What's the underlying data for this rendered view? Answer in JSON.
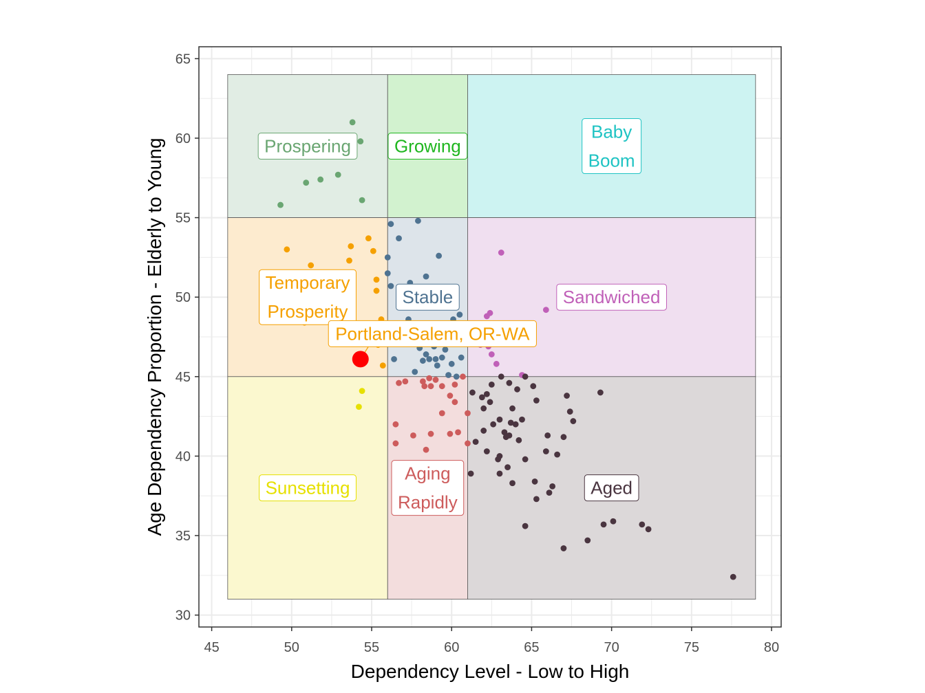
{
  "chart_data": {
    "type": "scatter",
    "title": "",
    "xlabel": "Dependency Level - Low to High",
    "ylabel": "Age Dependency Proportion - Elderly to Young",
    "xlim": [
      44.2,
      80.6
    ],
    "ylim": [
      29.25,
      65.75
    ],
    "x_ticks": [
      45,
      50,
      55,
      60,
      65,
      70,
      75,
      80
    ],
    "y_ticks": [
      30,
      35,
      40,
      45,
      50,
      55,
      60,
      65
    ],
    "grid": true,
    "legend": "none",
    "regions": [
      {
        "name": "Prospering",
        "label_lines": [
          "Prospering"
        ],
        "x": [
          46,
          56
        ],
        "y": [
          55,
          64
        ],
        "color": "#6aa672",
        "fill": "#e1ede4",
        "label_at": [
          51,
          59.5
        ]
      },
      {
        "name": "Growing",
        "label_lines": [
          "Growing"
        ],
        "x": [
          56,
          61
        ],
        "y": [
          55,
          64
        ],
        "color": "#1fb61f",
        "fill": "#d2f2cf",
        "label_at": [
          58.5,
          59.5
        ]
      },
      {
        "name": "Baby Boom",
        "label_lines": [
          "Baby",
          "Boom"
        ],
        "x": [
          61,
          79
        ],
        "y": [
          55,
          64
        ],
        "color": "#1fc3c3",
        "fill": "#cdf3f2",
        "label_at": [
          70,
          59.5
        ]
      },
      {
        "name": "Temporary Prosperity",
        "label_lines": [
          "Temporary",
          "Prosperity"
        ],
        "x": [
          46,
          56
        ],
        "y": [
          45,
          55
        ],
        "color": "#f5a000",
        "fill": "#fdebcf",
        "label_at": [
          51,
          50
        ]
      },
      {
        "name": "Stable",
        "label_lines": [
          "Stable"
        ],
        "x": [
          56,
          61
        ],
        "y": [
          45,
          55
        ],
        "color": "#4f7391",
        "fill": "#dde4ea",
        "label_at": [
          58.5,
          50
        ]
      },
      {
        "name": "Sandwiched",
        "label_lines": [
          "Sandwiched"
        ],
        "x": [
          61,
          79
        ],
        "y": [
          45,
          55
        ],
        "color": "#c060b8",
        "fill": "#f0dff0",
        "label_at": [
          70,
          50
        ]
      },
      {
        "name": "Sunsetting",
        "label_lines": [
          "Sunsetting"
        ],
        "x": [
          46,
          56
        ],
        "y": [
          31,
          45
        ],
        "color": "#e6e000",
        "fill": "#fbf8cf",
        "label_at": [
          51,
          38
        ]
      },
      {
        "name": "Aging Rapidly",
        "label_lines": [
          "Aging",
          "Rapidly"
        ],
        "x": [
          56,
          61
        ],
        "y": [
          31,
          45
        ],
        "color": "#cd5c5c",
        "fill": "#f3dddd",
        "label_at": [
          58.5,
          38
        ]
      },
      {
        "name": "Aged",
        "label_lines": [
          "Aged"
        ],
        "x": [
          61,
          79
        ],
        "y": [
          31,
          45
        ],
        "color": "#4a3540",
        "fill": "#dcd8d9",
        "label_at": [
          70,
          38
        ]
      }
    ],
    "series": [
      {
        "category": "Prospering",
        "points": [
          [
            49.3,
            55.8
          ],
          [
            50.9,
            57.2
          ],
          [
            51.8,
            57.4
          ],
          [
            52.9,
            57.7
          ],
          [
            53.8,
            61.0
          ],
          [
            54.3,
            59.8
          ],
          [
            54.4,
            56.1
          ]
        ]
      },
      {
        "category": "Temporary Prosperity",
        "points": [
          [
            49.7,
            53.0
          ],
          [
            51.2,
            52.0
          ],
          [
            53.6,
            52.3
          ],
          [
            53.7,
            53.2
          ],
          [
            54.8,
            53.7
          ],
          [
            55.1,
            52.9
          ],
          [
            55.3,
            51.1
          ],
          [
            55.3,
            50.4
          ],
          [
            55.6,
            48.6
          ],
          [
            55.4,
            47.0
          ],
          [
            55.7,
            45.7
          ],
          [
            50.8,
            48.4
          ],
          [
            52.8,
            47.5
          ]
        ]
      },
      {
        "category": "Stable",
        "points": [
          [
            56.2,
            54.6
          ],
          [
            56.7,
            53.7
          ],
          [
            57.9,
            54.8
          ],
          [
            56.0,
            52.5
          ],
          [
            56.0,
            51.5
          ],
          [
            56.2,
            50.7
          ],
          [
            57.4,
            50.9
          ],
          [
            58.4,
            51.3
          ],
          [
            59.2,
            52.6
          ],
          [
            56.8,
            50.1
          ],
          [
            57.3,
            48.6
          ],
          [
            58.0,
            48.3
          ],
          [
            58.5,
            47.9
          ],
          [
            59.3,
            48.1
          ],
          [
            60.1,
            48.6
          ],
          [
            60.5,
            48.9
          ],
          [
            58.0,
            46.8
          ],
          [
            58.4,
            46.4
          ],
          [
            58.9,
            46.9
          ],
          [
            59.6,
            46.7
          ],
          [
            56.4,
            46.1
          ],
          [
            58.2,
            46.0
          ],
          [
            58.6,
            46.1
          ],
          [
            59.0,
            46.1
          ],
          [
            59.4,
            46.2
          ],
          [
            59.1,
            45.7
          ],
          [
            60.0,
            45.8
          ],
          [
            60.6,
            46.2
          ],
          [
            57.7,
            45.3
          ],
          [
            59.8,
            45.1
          ],
          [
            60.3,
            45.0
          ]
        ]
      },
      {
        "category": "Sandwiched",
        "points": [
          [
            63.1,
            52.8
          ],
          [
            65.9,
            49.2
          ],
          [
            62.2,
            48.8
          ],
          [
            62.4,
            49.0
          ],
          [
            63.2,
            48.3
          ],
          [
            64.7,
            48.1
          ],
          [
            61.6,
            47.4
          ],
          [
            61.8,
            47.0
          ],
          [
            62.3,
            46.9
          ],
          [
            62.5,
            46.4
          ],
          [
            62.8,
            45.8
          ],
          [
            64.4,
            45.1
          ]
        ]
      },
      {
        "category": "Sunsetting",
        "points": [
          [
            54.4,
            44.1
          ],
          [
            54.2,
            43.1
          ]
        ]
      },
      {
        "category": "Aging Rapidly",
        "points": [
          [
            56.7,
            44.6
          ],
          [
            57.1,
            44.7
          ],
          [
            58.2,
            44.7
          ],
          [
            58.6,
            44.9
          ],
          [
            59.0,
            44.8
          ],
          [
            59.4,
            44.4
          ],
          [
            60.2,
            44.5
          ],
          [
            60.7,
            45.0
          ],
          [
            58.3,
            44.4
          ],
          [
            58.7,
            44.4
          ],
          [
            56.5,
            42.0
          ],
          [
            59.4,
            42.7
          ],
          [
            61.0,
            42.7
          ],
          [
            57.6,
            41.3
          ],
          [
            56.5,
            40.8
          ],
          [
            58.7,
            41.4
          ],
          [
            59.9,
            41.4
          ],
          [
            60.4,
            41.5
          ],
          [
            61.0,
            40.8
          ],
          [
            58.4,
            40.4
          ],
          [
            59.9,
            43.8
          ],
          [
            60.2,
            43.4
          ]
        ]
      },
      {
        "category": "Aged",
        "points": [
          [
            61.3,
            44.0
          ],
          [
            61.9,
            43.7
          ],
          [
            62.2,
            43.9
          ],
          [
            62.5,
            44.5
          ],
          [
            63.1,
            45.0
          ],
          [
            62.0,
            43.0
          ],
          [
            62.4,
            43.4
          ],
          [
            63.6,
            44.6
          ],
          [
            64.1,
            44.2
          ],
          [
            64.6,
            45.0
          ],
          [
            65.1,
            44.4
          ],
          [
            65.3,
            43.5
          ],
          [
            62.6,
            42.0
          ],
          [
            63.0,
            42.3
          ],
          [
            63.7,
            42.1
          ],
          [
            64.4,
            42.3
          ],
          [
            63.8,
            43.0
          ],
          [
            64.0,
            42.0
          ],
          [
            63.3,
            41.5
          ],
          [
            63.4,
            41.2
          ],
          [
            63.6,
            41.3
          ],
          [
            62.0,
            41.6
          ],
          [
            61.5,
            40.9
          ],
          [
            62.2,
            40.3
          ],
          [
            63.0,
            40.0
          ],
          [
            64.2,
            41.0
          ],
          [
            64.6,
            39.8
          ],
          [
            65.9,
            40.3
          ],
          [
            66.0,
            41.3
          ],
          [
            66.6,
            40.1
          ],
          [
            67.0,
            41.2
          ],
          [
            67.2,
            43.8
          ],
          [
            67.4,
            42.8
          ],
          [
            67.6,
            42.2
          ],
          [
            69.3,
            44.0
          ],
          [
            61.2,
            38.9
          ],
          [
            62.9,
            39.8
          ],
          [
            63.0,
            38.9
          ],
          [
            63.5,
            39.3
          ],
          [
            63.8,
            38.3
          ],
          [
            65.2,
            38.4
          ],
          [
            65.3,
            37.3
          ],
          [
            66.1,
            37.7
          ],
          [
            66.3,
            38.1
          ],
          [
            64.6,
            35.6
          ],
          [
            67.0,
            34.2
          ],
          [
            68.5,
            34.7
          ],
          [
            69.5,
            35.7
          ],
          [
            70.1,
            35.9
          ],
          [
            71.9,
            35.7
          ],
          [
            72.3,
            35.4
          ],
          [
            77.6,
            32.4
          ]
        ]
      }
    ],
    "highlight": {
      "label": "Portland-Salem, OR-WA",
      "point": [
        54.3,
        46.1
      ],
      "color": "#ff0000",
      "label_at": [
        58.8,
        47.7
      ]
    },
    "colors": {
      "panel_border": "#333333",
      "gridline": "#ebebeb",
      "region_border": "#555555",
      "label_bg": "#ffffff"
    }
  }
}
